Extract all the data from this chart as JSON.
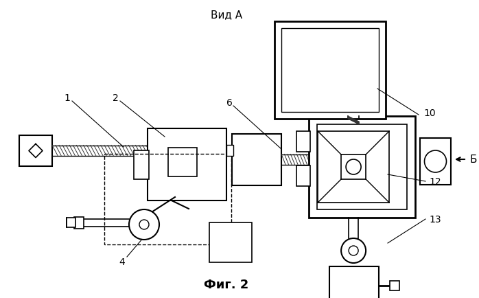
{
  "title_top": "Вид А",
  "title_bottom": "Фиг. 2",
  "bg_color": "#ffffff",
  "line_color": "#000000",
  "fig_w": 6.98,
  "fig_h": 4.35,
  "dpi": 100
}
